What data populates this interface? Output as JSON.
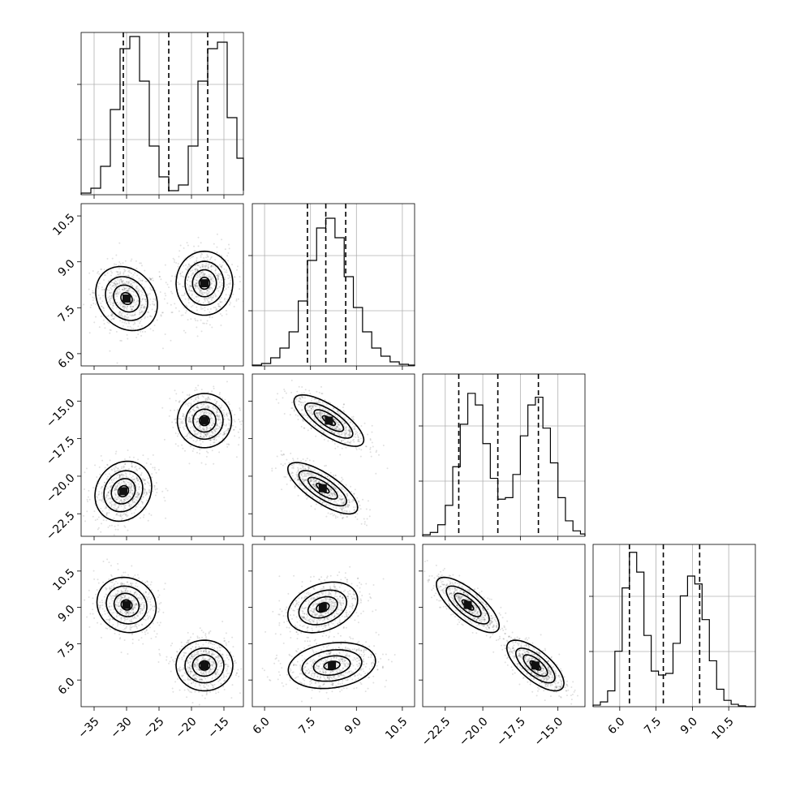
{
  "chart_data": {
    "type": "corner",
    "parameters": [
      {
        "range": [
          -37,
          -12
        ],
        "ticks": [
          -35,
          -30,
          -25,
          -20,
          -15
        ],
        "tick_labels": [
          "−35",
          "−30",
          "−25",
          "−20",
          "−15"
        ]
      },
      {
        "range": [
          5.6,
          10.9
        ],
        "ticks": [
          6.0,
          7.5,
          9.0,
          10.5
        ],
        "tick_labels": [
          "6.0",
          "7.5",
          "9.0",
          "10.5"
        ]
      },
      {
        "range": [
          -24,
          -13.2
        ],
        "ticks": [
          -22.5,
          -20.0,
          -17.5,
          -15.0
        ],
        "tick_labels": [
          "−22.5",
          "−20.0",
          "−17.5",
          "−15.0"
        ]
      },
      {
        "range": [
          4.9,
          11.6
        ],
        "ticks": [
          6.0,
          7.5,
          9.0,
          10.5
        ],
        "tick_labels": [
          "6.0",
          "7.5",
          "9.0",
          "10.5"
        ]
      }
    ],
    "histograms": [
      {
        "quantiles": [
          -30.5,
          -23.5,
          -17.5
        ],
        "edges": [
          -37,
          -35.5,
          -34,
          -32.5,
          -31,
          -29.5,
          -28,
          -26.5,
          -25,
          -23.5,
          -22,
          -20.5,
          -19,
          -17.5,
          -16,
          -14.5,
          -13,
          -12
        ],
        "counts": [
          2,
          8,
          35,
          105,
          180,
          195,
          140,
          60,
          22,
          5,
          12,
          60,
          140,
          180,
          188,
          95,
          45,
          5
        ],
        "max": 200
      },
      {
        "quantiles": [
          7.4,
          8.0,
          8.65
        ],
        "edges": [
          5.6,
          5.9,
          6.2,
          6.5,
          6.8,
          7.1,
          7.4,
          7.7,
          8.0,
          8.3,
          8.6,
          8.9,
          9.2,
          9.5,
          9.8,
          10.1,
          10.4,
          10.7,
          10.9
        ],
        "counts": [
          1,
          3,
          10,
          22,
          42,
          80,
          130,
          170,
          182,
          158,
          110,
          72,
          42,
          22,
          12,
          5,
          2,
          1
        ],
        "max": 200
      },
      {
        "quantiles": [
          -21.6,
          -19.0,
          -16.3
        ],
        "edges": [
          -24,
          -23.5,
          -23,
          -22.5,
          -22,
          -21.5,
          -21,
          -20.5,
          -20,
          -19.5,
          -19,
          -18.5,
          -18,
          -17.5,
          -17,
          -16.5,
          -16,
          -15.5,
          -15,
          -14.5,
          -14,
          -13.5,
          -13.2
        ],
        "counts": [
          2,
          5,
          15,
          40,
          90,
          145,
          185,
          170,
          120,
          75,
          48,
          50,
          80,
          130,
          170,
          180,
          140,
          95,
          50,
          20,
          7,
          3
        ],
        "max": 210
      },
      {
        "quantiles": [
          6.4,
          7.8,
          9.3
        ],
        "edges": [
          4.9,
          5.2,
          5.5,
          5.8,
          6.1,
          6.4,
          6.7,
          7.0,
          7.3,
          7.6,
          7.9,
          8.2,
          8.5,
          8.8,
          9.1,
          9.4,
          9.7,
          10.0,
          10.3,
          10.6,
          10.9,
          11.2,
          11.6
        ],
        "counts": [
          2,
          6,
          20,
          70,
          150,
          195,
          170,
          90,
          45,
          40,
          42,
          80,
          140,
          165,
          155,
          110,
          58,
          22,
          8,
          3,
          1,
          0
        ],
        "max": 205
      }
    ],
    "pairs": [
      {
        "row": 1,
        "col": 0,
        "clusters": [
          {
            "cx": -30.0,
            "cy": 7.8,
            "sx": 2.5,
            "sy": 0.55,
            "rho": -0.2
          },
          {
            "cx": -18.0,
            "cy": 8.3,
            "sx": 2.3,
            "sy": 0.55,
            "rho": 0.0
          }
        ]
      },
      {
        "row": 2,
        "col": 0,
        "clusters": [
          {
            "cx": -30.5,
            "cy": -21.0,
            "sx": 2.3,
            "sy": 1.05,
            "rho": 0.15
          },
          {
            "cx": -18.0,
            "cy": -16.3,
            "sx": 2.2,
            "sy": 0.95,
            "rho": 0.0
          }
        ]
      },
      {
        "row": 2,
        "col": 1,
        "clusters": [
          {
            "cx": 8.1,
            "cy": -16.3,
            "sx": 0.6,
            "sy": 0.9,
            "rho": -0.75
          },
          {
            "cx": 7.9,
            "cy": -20.8,
            "sx": 0.6,
            "sy": 0.9,
            "rho": -0.75
          }
        ]
      },
      {
        "row": 3,
        "col": 0,
        "clusters": [
          {
            "cx": -30.0,
            "cy": 9.1,
            "sx": 2.4,
            "sy": 0.6,
            "rho": -0.1
          },
          {
            "cx": -18.0,
            "cy": 6.6,
            "sx": 2.3,
            "sy": 0.55,
            "rho": 0.0
          }
        ]
      },
      {
        "row": 3,
        "col": 1,
        "clusters": [
          {
            "cx": 7.9,
            "cy": 9.0,
            "sx": 0.6,
            "sy": 0.55,
            "rho": 0.3
          },
          {
            "cx": 8.2,
            "cy": 6.6,
            "sx": 0.75,
            "sy": 0.5,
            "rho": 0.2
          }
        ]
      },
      {
        "row": 3,
        "col": 2,
        "clusters": [
          {
            "cx": -21.0,
            "cy": 9.1,
            "sx": 1.1,
            "sy": 0.6,
            "rho": -0.75
          },
          {
            "cx": -16.5,
            "cy": 6.6,
            "sx": 1.0,
            "sy": 0.55,
            "rho": -0.7
          }
        ]
      }
    ]
  }
}
